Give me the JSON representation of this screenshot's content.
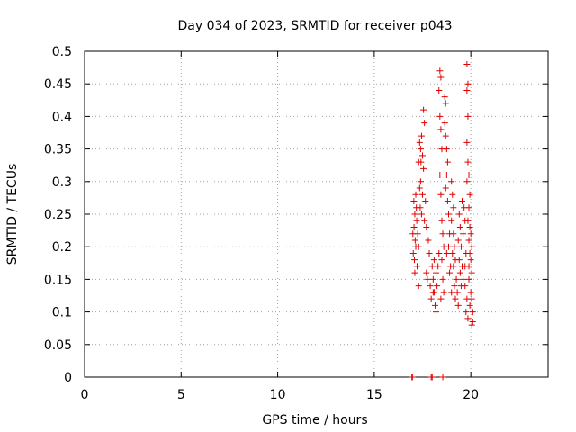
{
  "chart_data": {
    "type": "scatter",
    "title": "Day 034 of 2023, SRMTID for receiver p043",
    "xlabel": "GPS time / hours",
    "ylabel": "SRMTID / TECUs",
    "xlim": [
      0,
      24
    ],
    "ylim": [
      0,
      0.5
    ],
    "xticks": [
      0,
      5,
      10,
      15,
      20
    ],
    "yticks": [
      0,
      0.05,
      0.1,
      0.15,
      0.2,
      0.25,
      0.3,
      0.35,
      0.4,
      0.45,
      0.5
    ],
    "xtick_labels": [
      "0",
      "5",
      "10",
      "15",
      "20"
    ],
    "ytick_labels": [
      "0",
      "0.05",
      "0.1",
      "0.15",
      "0.2",
      "0.25",
      "0.3",
      "0.35",
      "0.4",
      "0.45",
      "0.5"
    ],
    "grid": true,
    "marker": "plus",
    "color": "#e00000",
    "series": [
      {
        "name": "SRMTID",
        "points": [
          [
            16.95,
            0.0
          ],
          [
            16.98,
            0.0
          ],
          [
            17.95,
            0.0
          ],
          [
            18.0,
            0.0
          ],
          [
            18.55,
            0.0
          ],
          [
            17.05,
            0.27
          ],
          [
            17.1,
            0.25
          ],
          [
            17.0,
            0.22
          ],
          [
            17.15,
            0.2
          ],
          [
            17.08,
            0.18
          ],
          [
            17.2,
            0.24
          ],
          [
            17.12,
            0.21
          ],
          [
            17.02,
            0.19
          ],
          [
            17.18,
            0.26
          ],
          [
            17.06,
            0.23
          ],
          [
            17.22,
            0.17
          ],
          [
            17.1,
            0.16
          ],
          [
            17.25,
            0.22
          ],
          [
            17.15,
            0.28
          ],
          [
            17.3,
            0.2
          ],
          [
            17.3,
            0.33
          ],
          [
            17.35,
            0.36
          ],
          [
            17.4,
            0.35
          ],
          [
            17.45,
            0.37
          ],
          [
            17.5,
            0.34
          ],
          [
            17.4,
            0.3
          ],
          [
            17.55,
            0.32
          ],
          [
            17.35,
            0.29
          ],
          [
            17.5,
            0.28
          ],
          [
            17.6,
            0.39
          ],
          [
            17.55,
            0.41
          ],
          [
            17.42,
            0.33
          ],
          [
            17.45,
            0.25
          ],
          [
            17.6,
            0.24
          ],
          [
            17.38,
            0.26
          ],
          [
            17.3,
            0.14
          ],
          [
            17.65,
            0.27
          ],
          [
            17.7,
            0.23
          ],
          [
            17.7,
            0.16
          ],
          [
            17.75,
            0.15
          ],
          [
            17.8,
            0.21
          ],
          [
            17.85,
            0.19
          ],
          [
            17.9,
            0.14
          ],
          [
            17.95,
            0.12
          ],
          [
            18.0,
            0.17
          ],
          [
            18.05,
            0.15
          ],
          [
            18.1,
            0.13
          ],
          [
            18.15,
            0.11
          ],
          [
            18.2,
            0.1
          ],
          [
            18.25,
            0.14
          ],
          [
            18.2,
            0.16
          ],
          [
            18.1,
            0.18
          ],
          [
            18.3,
            0.17
          ],
          [
            18.35,
            0.19
          ],
          [
            18.05,
            0.13
          ],
          [
            18.4,
            0.47
          ],
          [
            18.45,
            0.46
          ],
          [
            18.35,
            0.44
          ],
          [
            18.4,
            0.4
          ],
          [
            18.45,
            0.38
          ],
          [
            18.5,
            0.35
          ],
          [
            18.4,
            0.31
          ],
          [
            18.45,
            0.28
          ],
          [
            18.5,
            0.24
          ],
          [
            18.55,
            0.22
          ],
          [
            18.6,
            0.2
          ],
          [
            18.5,
            0.18
          ],
          [
            18.55,
            0.15
          ],
          [
            18.6,
            0.13
          ],
          [
            18.45,
            0.12
          ],
          [
            18.65,
            0.43
          ],
          [
            18.7,
            0.42
          ],
          [
            18.65,
            0.39
          ],
          [
            18.7,
            0.37
          ],
          [
            18.75,
            0.35
          ],
          [
            18.8,
            0.33
          ],
          [
            18.75,
            0.31
          ],
          [
            18.7,
            0.29
          ],
          [
            18.8,
            0.27
          ],
          [
            18.85,
            0.25
          ],
          [
            18.9,
            0.22
          ],
          [
            18.85,
            0.2
          ],
          [
            18.75,
            0.19
          ],
          [
            18.95,
            0.17
          ],
          [
            18.9,
            0.16
          ],
          [
            19.0,
            0.3
          ],
          [
            19.05,
            0.28
          ],
          [
            19.1,
            0.26
          ],
          [
            19.0,
            0.24
          ],
          [
            19.1,
            0.22
          ],
          [
            19.15,
            0.2
          ],
          [
            19.05,
            0.19
          ],
          [
            19.2,
            0.18
          ],
          [
            19.1,
            0.17
          ],
          [
            19.25,
            0.15
          ],
          [
            19.15,
            0.14
          ],
          [
            19.3,
            0.13
          ],
          [
            19.2,
            0.12
          ],
          [
            19.35,
            0.11
          ],
          [
            19.0,
            0.13
          ],
          [
            19.4,
            0.25
          ],
          [
            19.45,
            0.23
          ],
          [
            19.35,
            0.21
          ],
          [
            19.5,
            0.2
          ],
          [
            19.4,
            0.18
          ],
          [
            19.55,
            0.17
          ],
          [
            19.45,
            0.16
          ],
          [
            19.6,
            0.15
          ],
          [
            19.5,
            0.14
          ],
          [
            19.65,
            0.26
          ],
          [
            19.7,
            0.24
          ],
          [
            19.6,
            0.22
          ],
          [
            19.75,
            0.19
          ],
          [
            19.7,
            0.17
          ],
          [
            19.55,
            0.27
          ],
          [
            19.8,
            0.48
          ],
          [
            19.85,
            0.45
          ],
          [
            19.8,
            0.44
          ],
          [
            19.85,
            0.4
          ],
          [
            19.8,
            0.36
          ],
          [
            19.85,
            0.33
          ],
          [
            19.9,
            0.31
          ],
          [
            19.8,
            0.3
          ],
          [
            19.95,
            0.28
          ],
          [
            19.9,
            0.26
          ],
          [
            19.85,
            0.24
          ],
          [
            19.95,
            0.23
          ],
          [
            20.0,
            0.22
          ],
          [
            19.9,
            0.21
          ],
          [
            20.05,
            0.2
          ],
          [
            19.95,
            0.19
          ],
          [
            20.0,
            0.18
          ],
          [
            20.05,
            0.16
          ],
          [
            19.9,
            0.15
          ],
          [
            20.0,
            0.13
          ],
          [
            20.05,
            0.12
          ],
          [
            19.95,
            0.11
          ],
          [
            20.1,
            0.1
          ],
          [
            19.85,
            0.09
          ],
          [
            20.1,
            0.085
          ],
          [
            20.05,
            0.08
          ],
          [
            19.75,
            0.1
          ],
          [
            19.8,
            0.12
          ],
          [
            19.7,
            0.14
          ],
          [
            19.9,
            0.17
          ]
        ]
      }
    ]
  }
}
